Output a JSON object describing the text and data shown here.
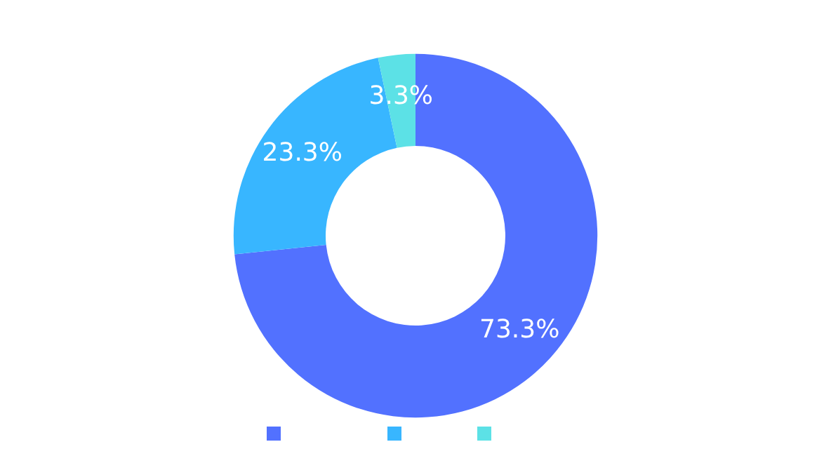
{
  "chart_data": {
    "type": "donut",
    "categories": [
      null,
      null,
      null
    ],
    "values": [
      73.3,
      23.3,
      3.3
    ],
    "value_labels": [
      "73.3%",
      "23.3%",
      "3.3%"
    ],
    "colors": [
      "#5271ff",
      "#38b6ff",
      "#5ce1e6"
    ]
  }
}
